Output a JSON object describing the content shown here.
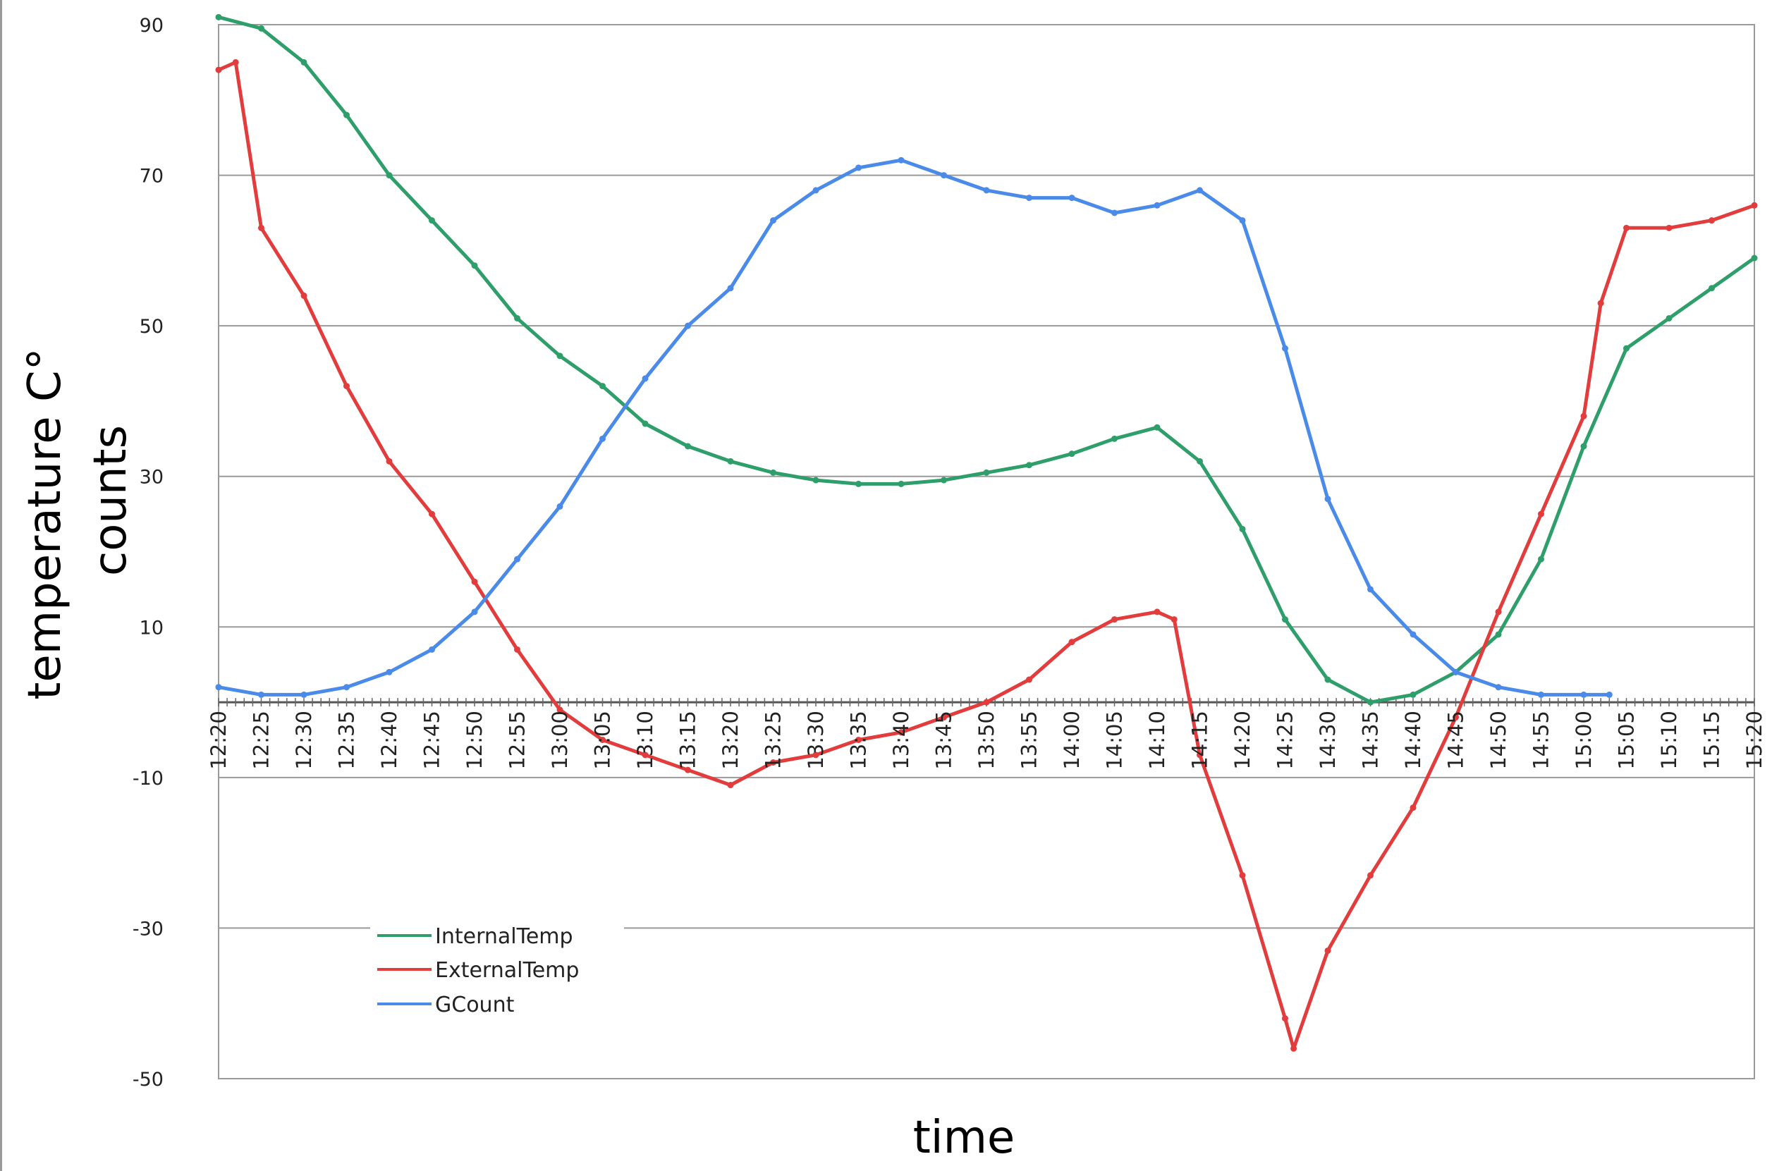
{
  "chart_data": {
    "type": "line",
    "title": "",
    "xlabel": "time",
    "ylabel_lines": [
      "temperature C°",
      "counts"
    ],
    "ylim": [
      -50,
      90
    ],
    "yticks": [
      -50,
      -30,
      -10,
      10,
      30,
      50,
      70,
      90
    ],
    "grid": true,
    "legend_position": "lower-left",
    "zero_axis": true,
    "x_tick_labels": [
      "12:20",
      "12:25",
      "12:30",
      "12:35",
      "12:40",
      "12:45",
      "12:50",
      "12:55",
      "13:00",
      "13:05",
      "13:10",
      "13:15",
      "13:20",
      "13:25",
      "13:30",
      "13:35",
      "13:40",
      "13:45",
      "13:50",
      "13:55",
      "14:00",
      "14:05",
      "14:10",
      "14:15",
      "14:20",
      "14:25",
      "14:30",
      "14:35",
      "14:40",
      "14:45",
      "14:50",
      "14:55",
      "15:00",
      "15:05",
      "15:10",
      "15:15",
      "15:20"
    ],
    "series": [
      {
        "name": "InternalTemp",
        "color": "#2e9e6a",
        "x": [
          "12:20",
          "12:25",
          "12:30",
          "12:35",
          "12:40",
          "12:45",
          "12:50",
          "12:55",
          "13:00",
          "13:05",
          "13:10",
          "13:15",
          "13:20",
          "13:25",
          "13:30",
          "13:35",
          "13:40",
          "13:45",
          "13:50",
          "13:55",
          "14:00",
          "14:05",
          "14:10",
          "14:15",
          "14:20",
          "14:25",
          "14:30",
          "14:35",
          "14:40",
          "14:45",
          "14:50",
          "14:55",
          "15:00",
          "15:05",
          "15:10",
          "15:15",
          "15:20"
        ],
        "values": [
          91,
          89.5,
          85,
          78,
          70,
          64,
          58,
          51,
          46,
          42,
          37,
          34,
          32,
          30.5,
          29.5,
          29,
          29,
          29.5,
          30.5,
          31.5,
          33,
          35,
          36.5,
          32,
          23,
          11,
          3,
          0,
          1,
          4,
          9,
          19,
          34,
          47,
          51,
          55,
          59
        ]
      },
      {
        "name": "ExternalTemp",
        "color": "#e23c3c",
        "x": [
          "12:20",
          "12:22",
          "12:25",
          "12:30",
          "12:35",
          "12:40",
          "12:45",
          "12:50",
          "12:55",
          "13:00",
          "13:05",
          "13:10",
          "13:15",
          "13:20",
          "13:25",
          "13:30",
          "13:35",
          "13:40",
          "13:45",
          "13:50",
          "13:55",
          "14:00",
          "14:05",
          "14:10",
          "14:12",
          "14:15",
          "14:20",
          "14:25",
          "14:26",
          "14:30",
          "14:35",
          "14:40",
          "14:45",
          "14:50",
          "14:55",
          "15:00",
          "15:02",
          "15:05",
          "15:10",
          "15:15",
          "15:20"
        ],
        "values": [
          84,
          85,
          63,
          54,
          42,
          32,
          25,
          16,
          7,
          -1,
          -5,
          -7,
          -9,
          -11,
          -8,
          -7,
          -5,
          -4,
          -2,
          0,
          3,
          8,
          11,
          12,
          11,
          -7,
          -23,
          -42,
          -46,
          -33,
          -23,
          -14,
          -2,
          12,
          25,
          38,
          53,
          63,
          63,
          64,
          66
        ]
      },
      {
        "name": "GCount",
        "color": "#4a8ae8",
        "x": [
          "12:20",
          "12:25",
          "12:30",
          "12:35",
          "12:40",
          "12:45",
          "12:50",
          "12:55",
          "13:00",
          "13:05",
          "13:10",
          "13:15",
          "13:20",
          "13:25",
          "13:30",
          "13:35",
          "13:40",
          "13:45",
          "13:50",
          "13:55",
          "14:00",
          "14:05",
          "14:10",
          "14:15",
          "14:20",
          "14:25",
          "14:30",
          "14:35",
          "14:40",
          "14:45",
          "14:50",
          "14:55",
          "15:00",
          "15:03"
        ],
        "values": [
          2,
          1,
          1,
          2,
          4,
          7,
          12,
          19,
          26,
          35,
          43,
          50,
          55,
          64,
          68,
          71,
          72,
          70,
          68,
          67,
          67,
          65,
          66,
          68,
          64,
          47,
          27,
          15,
          9,
          4,
          2,
          1,
          1,
          1
        ]
      }
    ]
  }
}
